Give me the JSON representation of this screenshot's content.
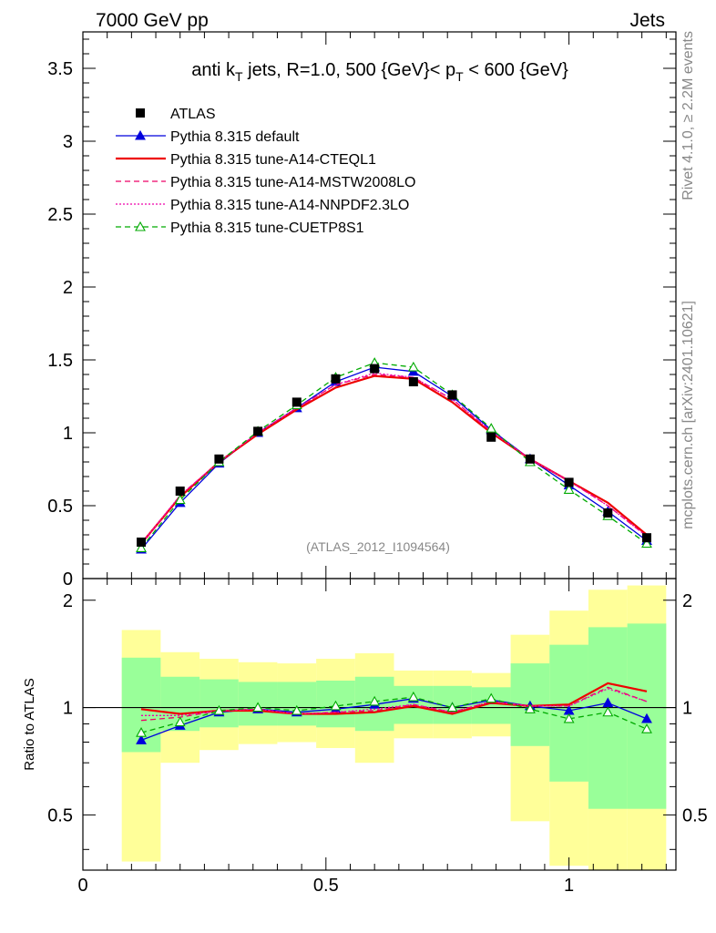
{
  "header": {
    "left": "7000 GeV pp",
    "right": "Jets"
  },
  "side_labels": {
    "rivet": "Rivet 4.1.0, ≥ 2.2M events",
    "mcplots": "mcplots.cern.ch [arXiv:2401.10621]"
  },
  "chart_data": [
    {
      "type": "line",
      "title": "anti k_T jets, R=1.0, 500 {GeV}< p_T < 600 {GeV}",
      "title_parts": {
        "a": "anti k",
        "a_sub": "T",
        "b": " jets, R=1.0,  500 {GeV}< p",
        "b_sub": "T",
        "c": " < 600 {GeV}"
      },
      "watermark": "(ATLAS_2012_I1094564)",
      "xlim": [
        0,
        1.22
      ],
      "ylim": [
        0,
        3.75
      ],
      "yticks": [
        "0",
        "0.5",
        "1",
        "1.5",
        "2",
        "2.5",
        "3",
        "3.5"
      ],
      "ytick_values": [
        0,
        0.5,
        1,
        1.5,
        2,
        2.5,
        3,
        3.5
      ],
      "x": [
        0.12,
        0.2,
        0.28,
        0.36,
        0.44,
        0.52,
        0.6,
        0.68,
        0.76,
        0.84,
        0.92,
        1.0,
        1.08,
        1.16
      ],
      "data": {
        "name": "ATLAS",
        "color": "#000000",
        "values": [
          0.25,
          0.6,
          0.82,
          1.01,
          1.21,
          1.37,
          1.44,
          1.35,
          1.26,
          0.97,
          0.82,
          0.66,
          0.45,
          0.28
        ]
      },
      "series": [
        {
          "name": "Pythia 8.315 default",
          "color": "#0000dd",
          "style": "solid",
          "marker": "triangle-filled",
          "values": [
            0.2,
            0.52,
            0.79,
            1.0,
            1.17,
            1.35,
            1.45,
            1.42,
            1.25,
            1.02,
            0.82,
            0.64,
            0.46,
            0.26
          ]
        },
        {
          "name": "Pythia 8.315 tune-A14-CTEQL1",
          "color": "#ee0000",
          "style": "solid",
          "marker": "none",
          "values": [
            0.24,
            0.56,
            0.8,
            0.99,
            1.16,
            1.31,
            1.39,
            1.37,
            1.21,
            1.0,
            0.82,
            0.67,
            0.52,
            0.3
          ]
        },
        {
          "name": "Pythia 8.315 tune-A14-MSTW2008LO",
          "color": "#ee0066",
          "style": "dashed",
          "marker": "none",
          "values": [
            0.23,
            0.57,
            0.8,
            1.0,
            1.17,
            1.33,
            1.4,
            1.38,
            1.23,
            1.01,
            0.82,
            0.67,
            0.5,
            0.29
          ]
        },
        {
          "name": "Pythia 8.315 tune-A14-NNPDF2.3LO",
          "color": "#ee00aa",
          "style": "dotted",
          "marker": "none",
          "values": [
            0.24,
            0.57,
            0.8,
            1.0,
            1.17,
            1.33,
            1.41,
            1.38,
            1.23,
            1.01,
            0.82,
            0.67,
            0.5,
            0.29
          ]
        },
        {
          "name": "Pythia 8.315 tune-CUETP8S1",
          "color": "#00aa00",
          "style": "dashed",
          "marker": "triangle-open",
          "values": [
            0.21,
            0.54,
            0.8,
            1.01,
            1.19,
            1.38,
            1.48,
            1.45,
            1.26,
            1.03,
            0.8,
            0.61,
            0.43,
            0.24
          ]
        }
      ]
    },
    {
      "type": "line",
      "ylabel": "Ratio to ATLAS",
      "xlim": [
        0,
        1.22
      ],
      "ylim": [
        0.35,
        2.3
      ],
      "yscale": "log",
      "yticks": [
        "0.5",
        "1",
        "2"
      ],
      "ytick_values": [
        0.5,
        1,
        2
      ],
      "xticks": [
        "0",
        "0.5",
        "1"
      ],
      "xtick_values": [
        0,
        0.5,
        1
      ],
      "bin_edges": [
        0.08,
        0.16,
        0.24,
        0.32,
        0.4,
        0.48,
        0.56,
        0.64,
        0.72,
        0.8,
        0.88,
        0.96,
        1.04,
        1.12,
        1.2
      ],
      "band_yellow": {
        "color": "#ffff99",
        "low": [
          0.37,
          0.7,
          0.76,
          0.79,
          0.8,
          0.77,
          0.7,
          0.82,
          0.82,
          0.83,
          0.48,
          0.36,
          0.3,
          0.3
        ],
        "high": [
          1.65,
          1.43,
          1.37,
          1.34,
          1.33,
          1.37,
          1.42,
          1.27,
          1.27,
          1.25,
          1.6,
          1.87,
          2.14,
          2.2
        ]
      },
      "band_green": {
        "color": "#99ff99",
        "low": [
          0.75,
          0.86,
          0.88,
          0.89,
          0.89,
          0.88,
          0.86,
          0.9,
          0.9,
          0.9,
          0.78,
          0.62,
          0.52,
          0.52
        ],
        "high": [
          1.38,
          1.22,
          1.2,
          1.18,
          1.18,
          1.19,
          1.22,
          1.15,
          1.15,
          1.14,
          1.33,
          1.5,
          1.68,
          1.72
        ]
      },
      "x": [
        0.12,
        0.2,
        0.28,
        0.36,
        0.44,
        0.52,
        0.6,
        0.68,
        0.76,
        0.84,
        0.92,
        1.0,
        1.08,
        1.16
      ],
      "series": [
        {
          "name": "Pythia 8.315 default",
          "color": "#0000dd",
          "style": "solid",
          "marker": "triangle-filled",
          "values": [
            0.81,
            0.89,
            0.97,
            0.99,
            0.97,
            0.99,
            1.02,
            1.06,
            1.0,
            1.05,
            1.01,
            0.98,
            1.03,
            0.93
          ]
        },
        {
          "name": "Pythia 8.315 tune-A14-CTEQL1",
          "color": "#ee0000",
          "style": "solid",
          "marker": "none",
          "values": [
            0.99,
            0.96,
            0.98,
            0.98,
            0.96,
            0.96,
            0.97,
            1.01,
            0.96,
            1.03,
            1.01,
            1.02,
            1.17,
            1.11
          ]
        },
        {
          "name": "Pythia 8.315 tune-A14-MSTW2008LO",
          "color": "#ee0066",
          "style": "dashed",
          "marker": "none",
          "values": [
            0.92,
            0.94,
            0.98,
            0.99,
            0.96,
            0.97,
            0.98,
            1.02,
            0.97,
            1.04,
            1.01,
            1.01,
            1.14,
            1.04
          ]
        },
        {
          "name": "Pythia 8.315 tune-A14-NNPDF2.3LO",
          "color": "#ee00aa",
          "style": "dotted",
          "marker": "none",
          "values": [
            0.95,
            0.95,
            0.98,
            0.99,
            0.96,
            0.97,
            0.99,
            1.02,
            0.97,
            1.04,
            1.01,
            1.01,
            1.13,
            1.04
          ]
        },
        {
          "name": "Pythia 8.315 tune-CUETP8S1",
          "color": "#00aa00",
          "style": "dashed",
          "marker": "triangle-open",
          "values": [
            0.85,
            0.91,
            0.98,
            1.0,
            0.98,
            1.01,
            1.04,
            1.07,
            1.0,
            1.06,
            0.99,
            0.93,
            0.97,
            0.87
          ]
        }
      ]
    }
  ]
}
